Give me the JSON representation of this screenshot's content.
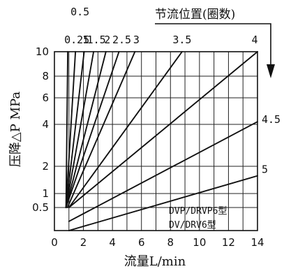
{
  "chart_data": {
    "type": "line",
    "title": "",
    "xlabel": "流量L/min",
    "ylabel": "压降△P MPa",
    "legend_title": "节流位置(圈数)",
    "models": [
      "DVP/DRVP6型",
      "DV/DRV6型"
    ],
    "xlim": [
      0,
      14
    ],
    "ylim": [
      0,
      10
    ],
    "y_scale": "custom-nonlinear",
    "x_ticks": [
      0,
      2,
      4,
      6,
      8,
      10,
      12,
      14
    ],
    "y_ticks": [
      0.5,
      1,
      2,
      4,
      6,
      8,
      10
    ],
    "y_tick_labels": [
      "0.5",
      "1",
      "2",
      "4",
      "6",
      "8",
      "10"
    ],
    "grid": true,
    "series": [
      {
        "name": "0.5",
        "start": [
          0.8,
          0.5
        ],
        "end": [
          0.92,
          10
        ]
      },
      {
        "name": "0.25",
        "start": [
          0.8,
          0.5
        ],
        "end": [
          1.45,
          10
        ]
      },
      {
        "name": "1",
        "start": [
          0.8,
          0.5
        ],
        "end": [
          2.05,
          10
        ]
      },
      {
        "name": "1.5",
        "start": [
          0.8,
          0.5
        ],
        "end": [
          2.7,
          10
        ]
      },
      {
        "name": "2",
        "start": [
          0.8,
          0.5
        ],
        "end": [
          3.55,
          10
        ]
      },
      {
        "name": "2.5",
        "start": [
          0.8,
          0.5
        ],
        "end": [
          4.45,
          10
        ]
      },
      {
        "name": "3",
        "start": [
          0.9,
          0.5
        ],
        "end": [
          5.55,
          10
        ]
      },
      {
        "name": "3.5",
        "start": [
          1.0,
          0.5
        ],
        "end": [
          8.8,
          10
        ]
      },
      {
        "name": "4",
        "start": [
          1.0,
          0.5
        ],
        "end": [
          14,
          10
        ]
      },
      {
        "name": "4.5",
        "start": [
          1.0,
          0.2
        ],
        "end": [
          14,
          4.2
        ]
      },
      {
        "name": "5",
        "start": [
          1.0,
          0.0
        ],
        "end": [
          14,
          1.65
        ]
      }
    ]
  }
}
